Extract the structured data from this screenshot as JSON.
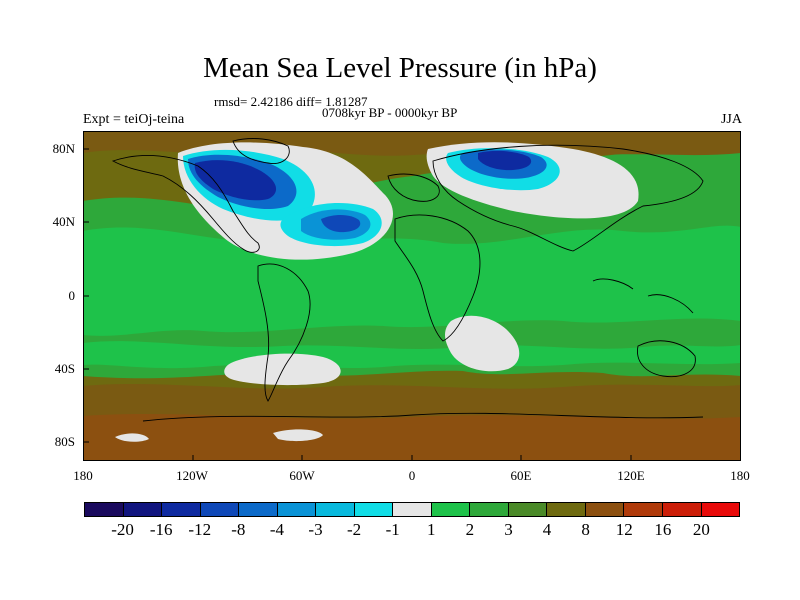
{
  "title": "Mean Sea Level Pressure (in hPa)",
  "stats": "rmsd= 2.42186 diff= 1.81287",
  "period": "0708kyr BP - 0000kyr BP",
  "experiment": "Expt = teiOj-teina",
  "season": "JJA",
  "y_ticks": [
    "80N",
    "40N",
    "0",
    "40S",
    "80S"
  ],
  "x_ticks": [
    "180",
    "120W",
    "60W",
    "0",
    "60E",
    "120E",
    "180"
  ],
  "colorbar": {
    "labels": [
      "-20",
      "-16",
      "-12",
      "-8",
      "-4",
      "-3",
      "-2",
      "-1",
      "1",
      "2",
      "3",
      "4",
      "8",
      "12",
      "16",
      "20"
    ],
    "colors": [
      "#1a0a5e",
      "#11157f",
      "#0e2aa0",
      "#0f48b8",
      "#0c6ac9",
      "#0a93d6",
      "#08b9dd",
      "#11dde6",
      "#e6e6e6",
      "#1ec24a",
      "#2ea83a",
      "#4a8a28",
      "#6e6a10",
      "#8c5010",
      "#b03a0a",
      "#cc1e08",
      "#e80a0a"
    ]
  }
}
